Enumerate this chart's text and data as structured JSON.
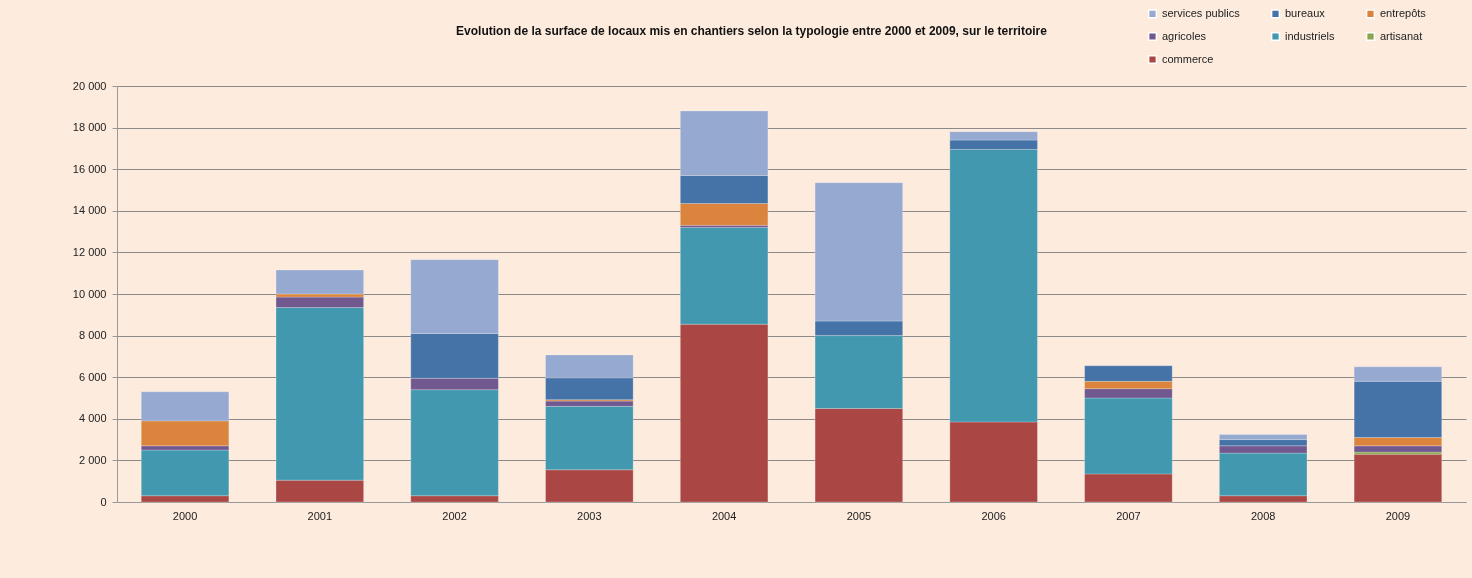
{
  "chart_data": {
    "type": "bar",
    "title": "Evolution de la surface de locaux mis en chantiers selon la typologie entre 2000 et 2009, sur le territoire",
    "stacked": true,
    "legend": "top right",
    "grid": "y",
    "categories": [
      "2000",
      "2001",
      "2002",
      "2003",
      "2004",
      "2005",
      "2006",
      "2007",
      "2008",
      "2009"
    ],
    "ylim": [
      0,
      20000
    ],
    "yticks": [
      0,
      {
        "value": 2000,
        "label": "2 000"
      },
      {
        "value": 4000,
        "label": "4 000"
      },
      {
        "value": 6000,
        "label": "6 000"
      },
      {
        "value": 8000,
        "label": "8 000"
      },
      {
        "value": 10000,
        "label": "10 000"
      },
      {
        "value": 12000,
        "label": "12 000"
      },
      {
        "value": 14000,
        "label": "14 000"
      },
      {
        "value": 16000,
        "label": "16 000"
      },
      {
        "value": 18000,
        "label": "18 000"
      },
      {
        "value": 20000,
        "label": "20 000"
      }
    ],
    "series": [
      {
        "name": "commerce",
        "color": "#aa4643",
        "values": [
          300,
          1050,
          300,
          1550,
          8550,
          4500,
          3850,
          1350,
          300,
          2300
        ]
      },
      {
        "name": "artisanat",
        "color": "#89a54e",
        "values": [
          null,
          null,
          null,
          null,
          null,
          null,
          null,
          null,
          null,
          100
        ]
      },
      {
        "name": "industriels",
        "color": "#4198af",
        "values": [
          2200,
          8300,
          5100,
          3050,
          4650,
          3500,
          13100,
          3650,
          2050,
          null
        ]
      },
      {
        "name": "agricoles",
        "color": "#71588f",
        "values": [
          200,
          500,
          550,
          250,
          100,
          null,
          null,
          450,
          350,
          300
        ]
      },
      {
        "name": "entrepôts",
        "color": "#db843d",
        "values": [
          1200,
          150,
          null,
          70,
          1050,
          null,
          null,
          350,
          null,
          400
        ]
      },
      {
        "name": "bureaux",
        "color": "#4573a7",
        "values": [
          null,
          null,
          2150,
          1050,
          1350,
          700,
          450,
          750,
          300,
          2700
        ]
      },
      {
        "name": "services publics",
        "color": "#95a9d1",
        "values": [
          1400,
          1150,
          3550,
          1100,
          3100,
          6650,
          400,
          null,
          250,
          700
        ]
      }
    ]
  }
}
